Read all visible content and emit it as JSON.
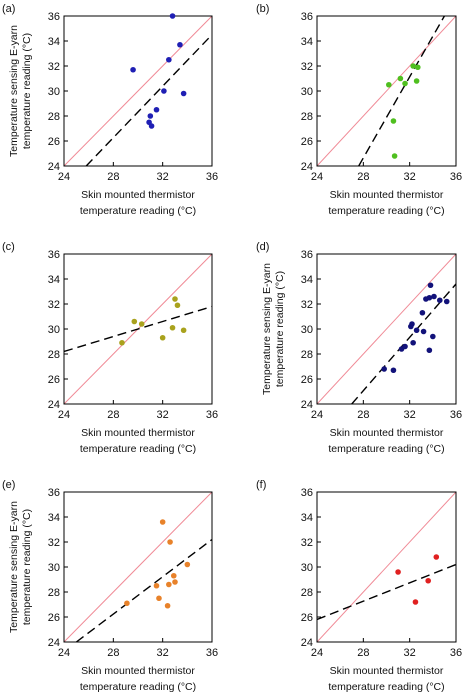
{
  "chart_data": [
    {
      "type": "scatter",
      "panel_label": "(a)",
      "xlabel_line1": "Skin mounted thermistor",
      "xlabel_line2": "temperature reading (°C)",
      "ylabel_line1": "Temperature sensing E-yarn",
      "ylabel_line2": "temperature reading (°C)",
      "xlim": [
        24,
        36
      ],
      "ylim": [
        24,
        36
      ],
      "xticks": [
        "24",
        "28",
        "32",
        "36"
      ],
      "yticks": [
        "24",
        "26",
        "28",
        "30",
        "32",
        "34",
        "36"
      ],
      "color": "#1f1fb4",
      "points": [
        [
          29.6,
          31.7
        ],
        [
          32.8,
          36.0
        ],
        [
          33.4,
          33.7
        ],
        [
          32.5,
          32.5
        ],
        [
          33.7,
          29.8
        ],
        [
          32.1,
          30.0
        ],
        [
          31.5,
          28.5
        ],
        [
          31.0,
          28.0
        ],
        [
          30.9,
          27.5
        ],
        [
          31.1,
          27.2
        ]
      ],
      "identity_line": [
        [
          24,
          24
        ],
        [
          36,
          36
        ]
      ],
      "fit_line": [
        [
          25.8,
          24.0
        ],
        [
          35.9,
          34.4
        ]
      ]
    },
    {
      "type": "scatter",
      "panel_label": "(b)",
      "xlabel_line1": "Skin mounted thermistor",
      "xlabel_line2": "temperature reading (°C)",
      "ylabel_line1": "",
      "ylabel_line2": "",
      "xlim": [
        24,
        36
      ],
      "ylim": [
        24,
        36
      ],
      "xticks": [
        "24",
        "28",
        "32",
        "36"
      ],
      "yticks": [
        "24",
        "26",
        "28",
        "30",
        "32",
        "34",
        "36"
      ],
      "color": "#4fbf1f",
      "points": [
        [
          30.2,
          30.5
        ],
        [
          31.2,
          31.0
        ],
        [
          31.6,
          30.6
        ],
        [
          32.3,
          32.0
        ],
        [
          32.7,
          31.9
        ],
        [
          32.6,
          30.8
        ],
        [
          30.6,
          27.6
        ],
        [
          30.7,
          24.8
        ]
      ],
      "identity_line": [
        [
          24,
          24
        ],
        [
          36,
          36
        ]
      ],
      "fit_line": [
        [
          27.6,
          24.0
        ],
        [
          35.0,
          36.0
        ]
      ]
    },
    {
      "type": "scatter",
      "panel_label": "(c)",
      "xlabel_line1": "Skin mounted thermistor",
      "xlabel_line2": "temperature reading (°C)",
      "ylabel_line1": "",
      "ylabel_line2": "",
      "xlim": [
        24,
        36
      ],
      "ylim": [
        24,
        36
      ],
      "xticks": [
        "24",
        "28",
        "32",
        "36"
      ],
      "yticks": [
        "24",
        "26",
        "28",
        "30",
        "32",
        "34",
        "36"
      ],
      "color": "#a9a21d",
      "points": [
        [
          28.7,
          28.9
        ],
        [
          29.7,
          30.6
        ],
        [
          30.3,
          30.4
        ],
        [
          32.0,
          29.3
        ],
        [
          32.8,
          30.1
        ],
        [
          33.0,
          32.4
        ],
        [
          33.2,
          31.9
        ],
        [
          33.7,
          29.9
        ]
      ],
      "identity_line": [
        [
          24,
          24
        ],
        [
          36,
          36
        ]
      ],
      "fit_line": [
        [
          24.0,
          28.2
        ],
        [
          36.0,
          31.8
        ]
      ]
    },
    {
      "type": "scatter",
      "panel_label": "(d)",
      "xlabel_line1": "Skin mounted thermistor",
      "xlabel_line2": "temperature reading (°C)",
      "ylabel_line1": "Temperature sensing E-yarn",
      "ylabel_line2": "temperature reading (°C)",
      "xlim": [
        24,
        36
      ],
      "ylim": [
        24,
        36
      ],
      "xticks": [
        "24",
        "28",
        "32",
        "36"
      ],
      "yticks": [
        "24",
        "26",
        "28",
        "30",
        "32",
        "34",
        "36"
      ],
      "color": "#12127a",
      "points": [
        [
          29.8,
          26.8
        ],
        [
          30.6,
          26.7
        ],
        [
          31.3,
          28.4
        ],
        [
          31.6,
          28.6
        ],
        [
          32.1,
          30.2
        ],
        [
          32.2,
          30.4
        ],
        [
          32.3,
          28.9
        ],
        [
          32.6,
          29.9
        ],
        [
          33.2,
          29.8
        ],
        [
          33.4,
          32.4
        ],
        [
          33.7,
          32.5
        ],
        [
          33.8,
          33.5
        ],
        [
          34.0,
          29.4
        ],
        [
          34.1,
          32.6
        ],
        [
          34.6,
          32.3
        ],
        [
          35.2,
          32.2
        ],
        [
          33.7,
          28.3
        ],
        [
          33.1,
          31.3
        ]
      ],
      "identity_line": [
        [
          24,
          24
        ],
        [
          36,
          36
        ]
      ],
      "fit_line": [
        [
          27.0,
          24.0
        ],
        [
          36.0,
          33.6
        ]
      ]
    },
    {
      "type": "scatter",
      "panel_label": "(e)",
      "xlabel_line1": "Skin mounted thermistor",
      "xlabel_line2": "temperature reading (°C)",
      "ylabel_line1": "Temperature sensing E-yarn",
      "ylabel_line2": "temperature reading (°C)",
      "xlim": [
        24,
        36
      ],
      "ylim": [
        24,
        36
      ],
      "xticks": [
        "24",
        "28",
        "32",
        "36"
      ],
      "yticks": [
        "24",
        "26",
        "28",
        "30",
        "32",
        "34",
        "36"
      ],
      "color": "#e8822a",
      "points": [
        [
          29.1,
          27.1
        ],
        [
          31.5,
          28.5
        ],
        [
          31.7,
          27.5
        ],
        [
          32.0,
          33.6
        ],
        [
          32.4,
          26.9
        ],
        [
          32.5,
          28.6
        ],
        [
          32.6,
          32.0
        ],
        [
          32.9,
          29.3
        ],
        [
          34.0,
          30.2
        ],
        [
          33.0,
          28.8
        ]
      ],
      "identity_line": [
        [
          24,
          24
        ],
        [
          36,
          36
        ]
      ],
      "fit_line": [
        [
          25.0,
          24.0
        ],
        [
          36.0,
          32.2
        ]
      ]
    },
    {
      "type": "scatter",
      "panel_label": "(f)",
      "xlabel_line1": "Skin mounted thermistor",
      "xlabel_line2": "temperature reading (°C)",
      "ylabel_line1": "",
      "ylabel_line2": "",
      "xlim": [
        24,
        36
      ],
      "ylim": [
        24,
        36
      ],
      "xticks": [
        "24",
        "28",
        "32",
        "36"
      ],
      "yticks": [
        "24",
        "26",
        "28",
        "30",
        "32",
        "34",
        "36"
      ],
      "color": "#e02020",
      "points": [
        [
          31.0,
          29.6
        ],
        [
          32.5,
          27.2
        ],
        [
          33.6,
          28.9
        ],
        [
          34.3,
          30.8
        ]
      ],
      "identity_line": [
        [
          24,
          24
        ],
        [
          36,
          36
        ]
      ],
      "fit_line": [
        [
          24.0,
          25.8
        ],
        [
          36.0,
          30.2
        ]
      ]
    }
  ],
  "colors": {
    "identity_line": "#f08a96",
    "fit_line": "#000000",
    "axis": "#000000"
  }
}
